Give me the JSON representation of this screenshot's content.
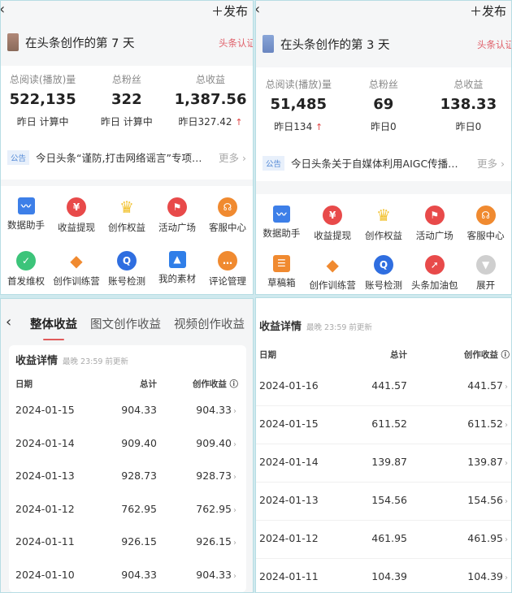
{
  "colors": {
    "accent_red": "#e05a5a",
    "notice_blue": "#5a8ed8",
    "up_arrow": "#e04848",
    "border": "#b7dde4"
  },
  "panels": [
    {
      "back_icon": "chevron-left-icon",
      "publish": "＋发布",
      "title": "在头条创作的第 7 天",
      "badge": "头条认证",
      "stats": [
        {
          "label": "总阅读(播放)量",
          "value": "522,135",
          "sub": "昨日 计算中",
          "up": ""
        },
        {
          "label": "总粉丝",
          "value": "322",
          "sub": "昨日 计算中",
          "up": ""
        },
        {
          "label": "总收益",
          "value": "1,387.56",
          "sub": "昨日327.42",
          "up": "↑"
        }
      ],
      "notice_tag": "公告",
      "notice": "今日头条“谨防,打击网络谣言”专项整...",
      "more": "更多 ›",
      "tools": [
        {
          "label": "数据助手",
          "icon": "chart-icon",
          "color": "#3d7fe8",
          "glyph": "〰",
          "square": true
        },
        {
          "label": "收益提现",
          "icon": "yuan-icon",
          "color": "#e84a4a",
          "glyph": "¥"
        },
        {
          "label": "创作权益",
          "icon": "crown-icon",
          "color": "#f2c230",
          "glyph": "♛",
          "plain": true
        },
        {
          "label": "活动广场",
          "icon": "flag-icon",
          "color": "#e84a4a",
          "glyph": "⚑"
        },
        {
          "label": "客服中心",
          "icon": "headset-icon",
          "color": "#f08a30",
          "glyph": "☊"
        },
        {
          "label": "首发维权",
          "icon": "shield-check-icon",
          "color": "#3cc47a",
          "glyph": "✓"
        },
        {
          "label": "创作训练营",
          "icon": "graduation-cap-icon",
          "color": "#f08a30",
          "glyph": "◆",
          "plain": true
        },
        {
          "label": "账号检测",
          "icon": "search-shield-icon",
          "color": "#2f6ee0",
          "glyph": "Q"
        },
        {
          "label": "我的素材",
          "icon": "image-icon",
          "color": "#2f7ee8",
          "glyph": "▲",
          "square": true
        },
        {
          "label": "评论管理",
          "icon": "comment-icon",
          "color": "#f08a30",
          "glyph": "…"
        }
      ]
    },
    {
      "back_icon": "chevron-left-icon",
      "publish": "＋发布",
      "title": "在头条创作的第 3 天",
      "badge": "头条认证",
      "stats": [
        {
          "label": "总阅读(播放)量",
          "value": "51,485",
          "sub": "昨日134",
          "up": "↑"
        },
        {
          "label": "总粉丝",
          "value": "69",
          "sub": "昨日0",
          "up": ""
        },
        {
          "label": "总收益",
          "value": "138.33",
          "sub": "昨日0",
          "up": ""
        }
      ],
      "notice_tag": "公告",
      "notice": "今日头条关于自媒体利用AIGC传播违...",
      "more": "更多 ›",
      "tools": [
        {
          "label": "数据助手",
          "icon": "chart-icon",
          "color": "#3d7fe8",
          "glyph": "〰",
          "square": true
        },
        {
          "label": "收益提现",
          "icon": "yuan-icon",
          "color": "#e84a4a",
          "glyph": "¥"
        },
        {
          "label": "创作权益",
          "icon": "crown-icon",
          "color": "#f2c230",
          "glyph": "♛",
          "plain": true
        },
        {
          "label": "活动广场",
          "icon": "flag-icon",
          "color": "#e84a4a",
          "glyph": "⚑"
        },
        {
          "label": "客服中心",
          "icon": "headset-icon",
          "color": "#f08a30",
          "glyph": "☊"
        },
        {
          "label": "草稿箱",
          "icon": "draft-icon",
          "color": "#f08a30",
          "glyph": "☰",
          "square": true
        },
        {
          "label": "创作训练营",
          "icon": "graduation-cap-icon",
          "color": "#f08a30",
          "glyph": "◆",
          "plain": true
        },
        {
          "label": "账号检测",
          "icon": "search-shield-icon",
          "color": "#2f6ee0",
          "glyph": "Q"
        },
        {
          "label": "头条加油包",
          "icon": "rocket-icon",
          "color": "#e84a4a",
          "glyph": "➚"
        },
        {
          "label": "展开",
          "icon": "expand-down-icon",
          "color": "#cfcfcf",
          "glyph": "▼"
        }
      ]
    }
  ],
  "income_left": {
    "tabs": [
      "整体收益",
      "图文创作收益",
      "视频创作收益"
    ],
    "section": "收益详情",
    "update": "最晚 23:59 前更新",
    "headers": [
      "日期",
      "总计",
      "创作收益 ⓘ"
    ],
    "rows": [
      [
        "2024-01-15",
        "904.33",
        "904.33"
      ],
      [
        "2024-01-14",
        "909.40",
        "909.40"
      ],
      [
        "2024-01-13",
        "928.73",
        "928.73"
      ],
      [
        "2024-01-12",
        "762.95",
        "762.95"
      ],
      [
        "2024-01-11",
        "926.15",
        "926.15"
      ],
      [
        "2024-01-10",
        "904.33",
        "904.33"
      ]
    ]
  },
  "income_right": {
    "section": "收益详情",
    "update": "最晚 23:59 前更新",
    "headers": [
      "日期",
      "总计",
      "创作收益 ⓘ"
    ],
    "rows": [
      [
        "2024-01-16",
        "441.57",
        "441.57"
      ],
      [
        "2024-01-15",
        "611.52",
        "611.52"
      ],
      [
        "2024-01-14",
        "139.87",
        "139.87"
      ],
      [
        "2024-01-13",
        "154.56",
        "154.56"
      ],
      [
        "2024-01-12",
        "461.95",
        "461.95"
      ],
      [
        "2024-01-11",
        "104.39",
        "104.39"
      ]
    ]
  }
}
